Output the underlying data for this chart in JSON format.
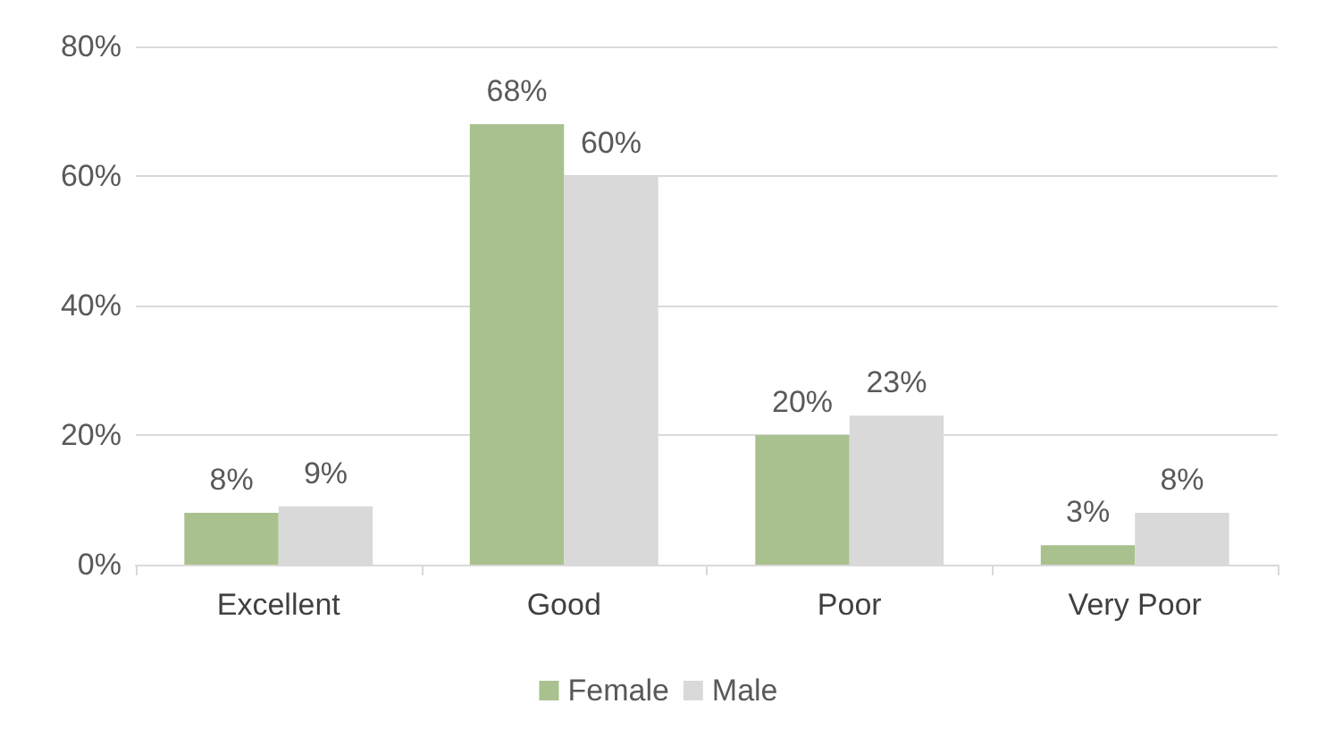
{
  "chart_data": {
    "type": "bar",
    "categories": [
      "Excellent",
      "Good",
      "Poor",
      "Very Poor"
    ],
    "series": [
      {
        "name": "Female",
        "color": "#a9c18e",
        "values": [
          8,
          68,
          20,
          3
        ],
        "value_labels": [
          "8%",
          "68%",
          "20%",
          "3%"
        ]
      },
      {
        "name": "Male",
        "color": "#d9d9d9",
        "values": [
          9,
          60,
          23,
          8
        ],
        "value_labels": [
          "9%",
          "60%",
          "23%",
          "8%"
        ]
      }
    ],
    "ylim": [
      0,
      80
    ],
    "yticks": [
      {
        "value": 0,
        "label": "0%"
      },
      {
        "value": 20,
        "label": "20%"
      },
      {
        "value": 40,
        "label": "40%"
      },
      {
        "value": 60,
        "label": "60%"
      },
      {
        "value": 80,
        "label": "80%"
      }
    ],
    "grid": "y",
    "legend": "bottom"
  }
}
